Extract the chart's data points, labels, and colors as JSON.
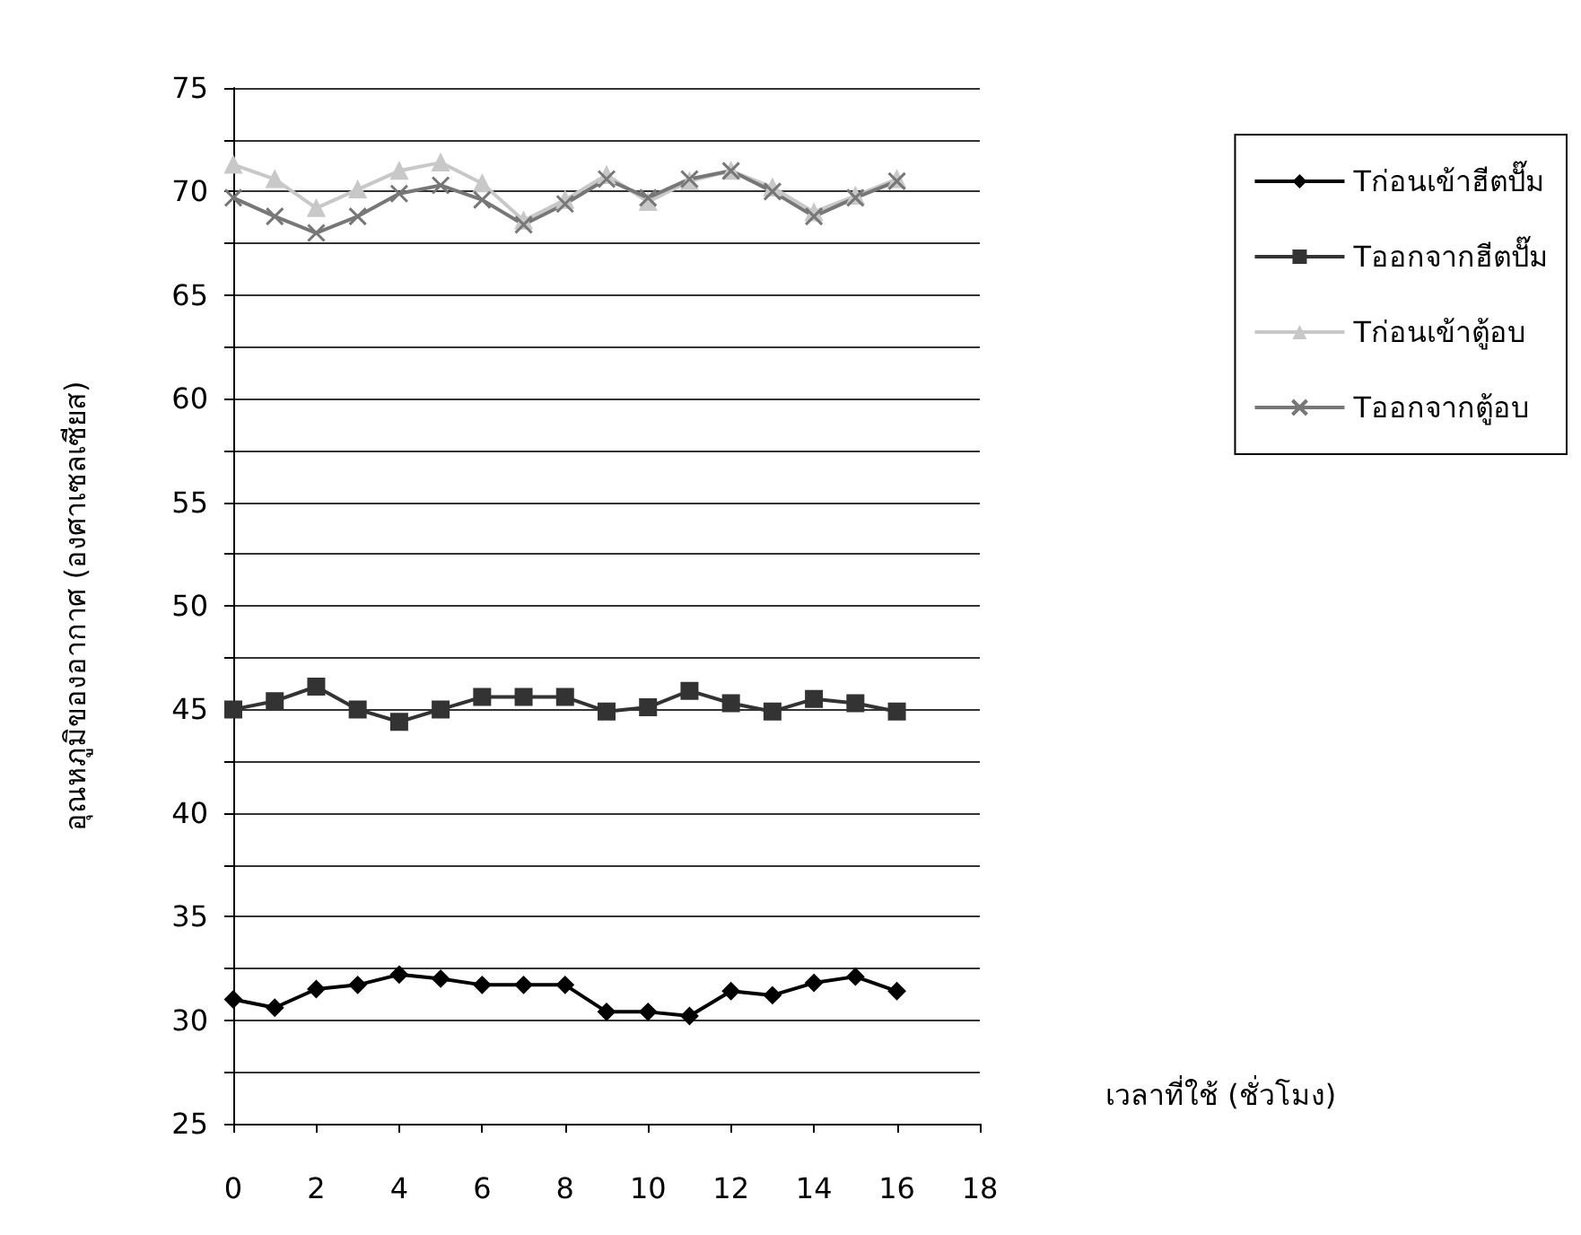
{
  "chart_data": {
    "type": "line",
    "xlabel": "เวลาที่ใช้ (ชั่วโมง)",
    "ylabel": "อุณหภูมิของอากาศ (องศาเซลเซียส)",
    "x": [
      0,
      1,
      2,
      3,
      4,
      5,
      6,
      7,
      8,
      9,
      10,
      11,
      12,
      13,
      14,
      15,
      16
    ],
    "series": [
      {
        "name": "Tก่อนเข้าฮีตปั๊ม",
        "color": "#000000",
        "marker": "diamond",
        "values": [
          31.0,
          30.6,
          31.5,
          31.7,
          32.2,
          32.0,
          31.7,
          31.7,
          31.7,
          30.4,
          30.4,
          30.2,
          31.4,
          31.2,
          31.8,
          32.1,
          31.4
        ]
      },
      {
        "name": "Tออกจากฮีตปั๊ม",
        "color": "#333333",
        "marker": "square",
        "values": [
          45.0,
          45.4,
          46.1,
          45.0,
          44.4,
          45.0,
          45.6,
          45.6,
          45.6,
          44.9,
          45.1,
          45.9,
          45.3,
          44.9,
          45.5,
          45.3,
          44.9
        ]
      },
      {
        "name": "Tก่อนเข้าตู้อบ",
        "color": "#c8c8c8",
        "marker": "triangle",
        "values": [
          71.3,
          70.6,
          69.2,
          70.1,
          71.0,
          71.4,
          70.4,
          68.6,
          69.6,
          70.8,
          69.5,
          70.5,
          71.0,
          70.2,
          69.0,
          69.8,
          70.6
        ]
      },
      {
        "name": "Tออกจากตู้อบ",
        "color": "#777777",
        "marker": "cross",
        "values": [
          69.7,
          68.8,
          68.0,
          68.8,
          69.9,
          70.3,
          69.6,
          68.4,
          69.4,
          70.6,
          69.7,
          70.6,
          71.0,
          70.0,
          68.8,
          69.7,
          70.5
        ]
      }
    ],
    "xlim": [
      0,
      18
    ],
    "xticks": [
      0,
      2,
      4,
      6,
      8,
      10,
      12,
      14,
      16,
      18
    ],
    "ylim": [
      25,
      75
    ],
    "yticks": [
      25,
      {
        "value": 27.5,
        "label": null
      },
      30,
      {
        "value": 32.5,
        "label": null
      },
      35,
      {
        "value": 37.5,
        "label": null
      },
      40,
      {
        "value": 42.5,
        "label": null
      },
      45,
      {
        "value": 47.5,
        "label": null
      },
      50,
      {
        "value": 52.5,
        "label": null
      },
      55,
      {
        "value": 57.5,
        "label": null
      },
      60,
      {
        "value": 62.5,
        "label": null
      },
      65,
      {
        "value": 67.5,
        "label": null
      },
      70,
      {
        "value": 72.5,
        "label": null
      },
      75
    ],
    "grid": "y",
    "legend": "right",
    "line_style": "solid"
  }
}
